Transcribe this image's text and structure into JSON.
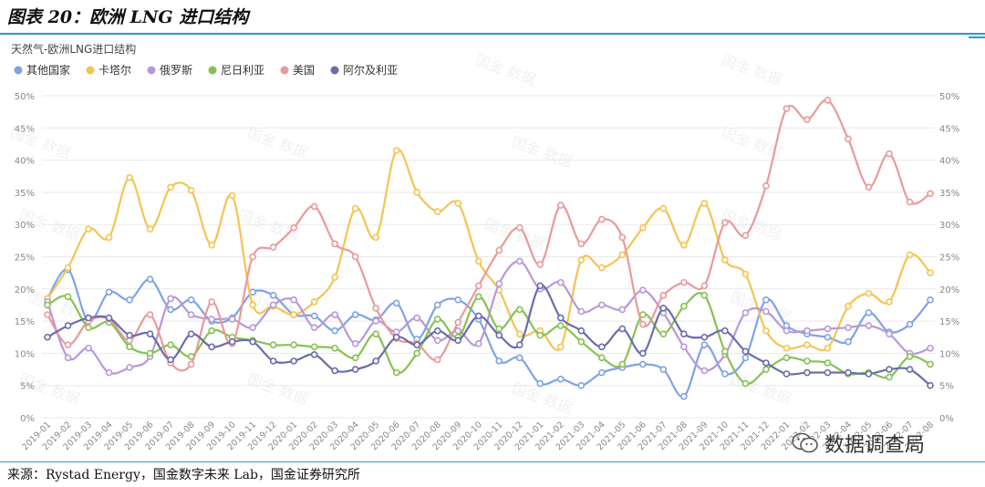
{
  "figure_title": "图表 20：欧洲 LNG 进口结构",
  "source_note": "来源：Rystad Energy，国金数字未来 Lab，国金证券研究所",
  "watermark_text": "国金 数据",
  "wechat_badge": "数据调查局",
  "icons": {
    "wechat": "wechat-icon"
  },
  "chart_data": {
    "type": "line",
    "title": "天然气-欧洲LNG进口结构",
    "legend_position": "top-left",
    "grid": true,
    "ylim": [
      0,
      50
    ],
    "yticks": [
      "0%",
      "5%",
      "10%",
      "15%",
      "20%",
      "25%",
      "30%",
      "35%",
      "40%",
      "45%",
      "50%"
    ],
    "categories": [
      "2019-01",
      "2019-02",
      "2019-03",
      "2019-04",
      "2019-05",
      "2019-06",
      "2019-07",
      "2019-08",
      "2019-09",
      "2019-10",
      "2019-11",
      "2019-12",
      "2020-01",
      "2020-02",
      "2020-03",
      "2020-04",
      "2020-05",
      "2020-06",
      "2020-07",
      "2020-08",
      "2020-09",
      "2020-10",
      "2020-11",
      "2020-12",
      "2021-01",
      "2021-02",
      "2021-03",
      "2021-04",
      "2021-05",
      "2021-06",
      "2021-07",
      "2021-08",
      "2021-09",
      "2021-10",
      "2021-11",
      "2021-12",
      "2022-01",
      "2022-02",
      "2022-03",
      "2022-04",
      "2022-05",
      "2022-06",
      "2022-07",
      "2022-08"
    ],
    "series": [
      {
        "name": "其他国家",
        "color": "#7ea3e6",
        "values": [
          18.5,
          23,
          15,
          19.5,
          18.3,
          21.5,
          16.8,
          18.3,
          15,
          15.5,
          19.5,
          19,
          16,
          15.8,
          13.5,
          16,
          15.2,
          17.8,
          12.2,
          17.5,
          18.3,
          15.3,
          8.8,
          9.3,
          5.3,
          6.0,
          5.0,
          7.0,
          7.8,
          8.3,
          7.5,
          3.3,
          11.3,
          6.8,
          9.3,
          18.3,
          14.3,
          13,
          12.5,
          11.8,
          16.3,
          13.3,
          14.5,
          18.3
        ]
      },
      {
        "name": "卡塔尔",
        "color": "#f4c452",
        "values": [
          18.5,
          23.3,
          29.3,
          28,
          37.3,
          29.3,
          35.8,
          35.3,
          26.8,
          34.5,
          17.5,
          17.3,
          16,
          18,
          21.8,
          32.5,
          28,
          41.5,
          35,
          32,
          33.3,
          24.3,
          19.8,
          13,
          13.5,
          11,
          24.5,
          23.3,
          25.3,
          29.5,
          32.5,
          26.8,
          33.3,
          24.5,
          22.3,
          13.5,
          10.8,
          11.3,
          10.8,
          17.3,
          19.3,
          18,
          25.3,
          22.5
        ]
      },
      {
        "name": "俄罗斯",
        "color": "#b898d8",
        "values": [
          18,
          9.3,
          10.8,
          7,
          7.8,
          9.5,
          18.5,
          16,
          15.3,
          15.3,
          14,
          17.5,
          18.3,
          14,
          16,
          11.5,
          15,
          13.3,
          15.5,
          12,
          13.5,
          11.5,
          20.8,
          24.3,
          20,
          21,
          16.5,
          17.5,
          16.8,
          19.8,
          16.3,
          11,
          7.3,
          9.8,
          16.3,
          16.5,
          13.5,
          13.5,
          13.8,
          14,
          14.3,
          13,
          10,
          10.8
        ]
      },
      {
        "name": "尼日利亚",
        "color": "#86c253",
        "values": [
          17.5,
          18.8,
          14,
          14.8,
          11,
          10,
          11.3,
          9.5,
          13.5,
          12.5,
          12,
          11.3,
          11.3,
          11,
          10.8,
          9.3,
          13,
          7,
          10,
          15.3,
          12.5,
          18.8,
          13.8,
          16.8,
          12.8,
          14.3,
          11.8,
          9.3,
          8.3,
          16,
          13,
          17.3,
          19,
          10.3,
          5.3,
          7.5,
          9.3,
          8.8,
          8.5,
          6.8,
          7,
          6.3,
          9.5,
          8.3
        ]
      },
      {
        "name": "美国",
        "color": "#e99a9a",
        "values": [
          16,
          11.3,
          15,
          15.3,
          12,
          16,
          8.5,
          8.3,
          18,
          11.5,
          25,
          26.5,
          29.5,
          32.8,
          27,
          25,
          17,
          12.3,
          11.5,
          9,
          14.8,
          20.5,
          26,
          29.5,
          23.8,
          33,
          27,
          30.8,
          28,
          14.5,
          19,
          21,
          20.5,
          30.3,
          28.3,
          36,
          48,
          46.3,
          49.3,
          43.3,
          35.8,
          41,
          33.5,
          34.8
        ]
      },
      {
        "name": "阿尔及利亚",
        "color": "#6a6cac",
        "values": [
          12.5,
          14.3,
          15.5,
          15.5,
          12.8,
          13,
          9,
          13,
          11,
          11.8,
          11.8,
          8.8,
          8.8,
          9.8,
          7.3,
          7.5,
          8.8,
          12.5,
          11.3,
          13.5,
          12,
          15.8,
          12.8,
          11.3,
          20.5,
          15.5,
          13.5,
          11,
          13.8,
          10,
          17,
          13,
          12.5,
          13.5,
          10.3,
          8.5,
          6.8,
          7,
          7,
          7,
          6.8,
          7.5,
          7.5,
          5
        ]
      }
    ]
  }
}
